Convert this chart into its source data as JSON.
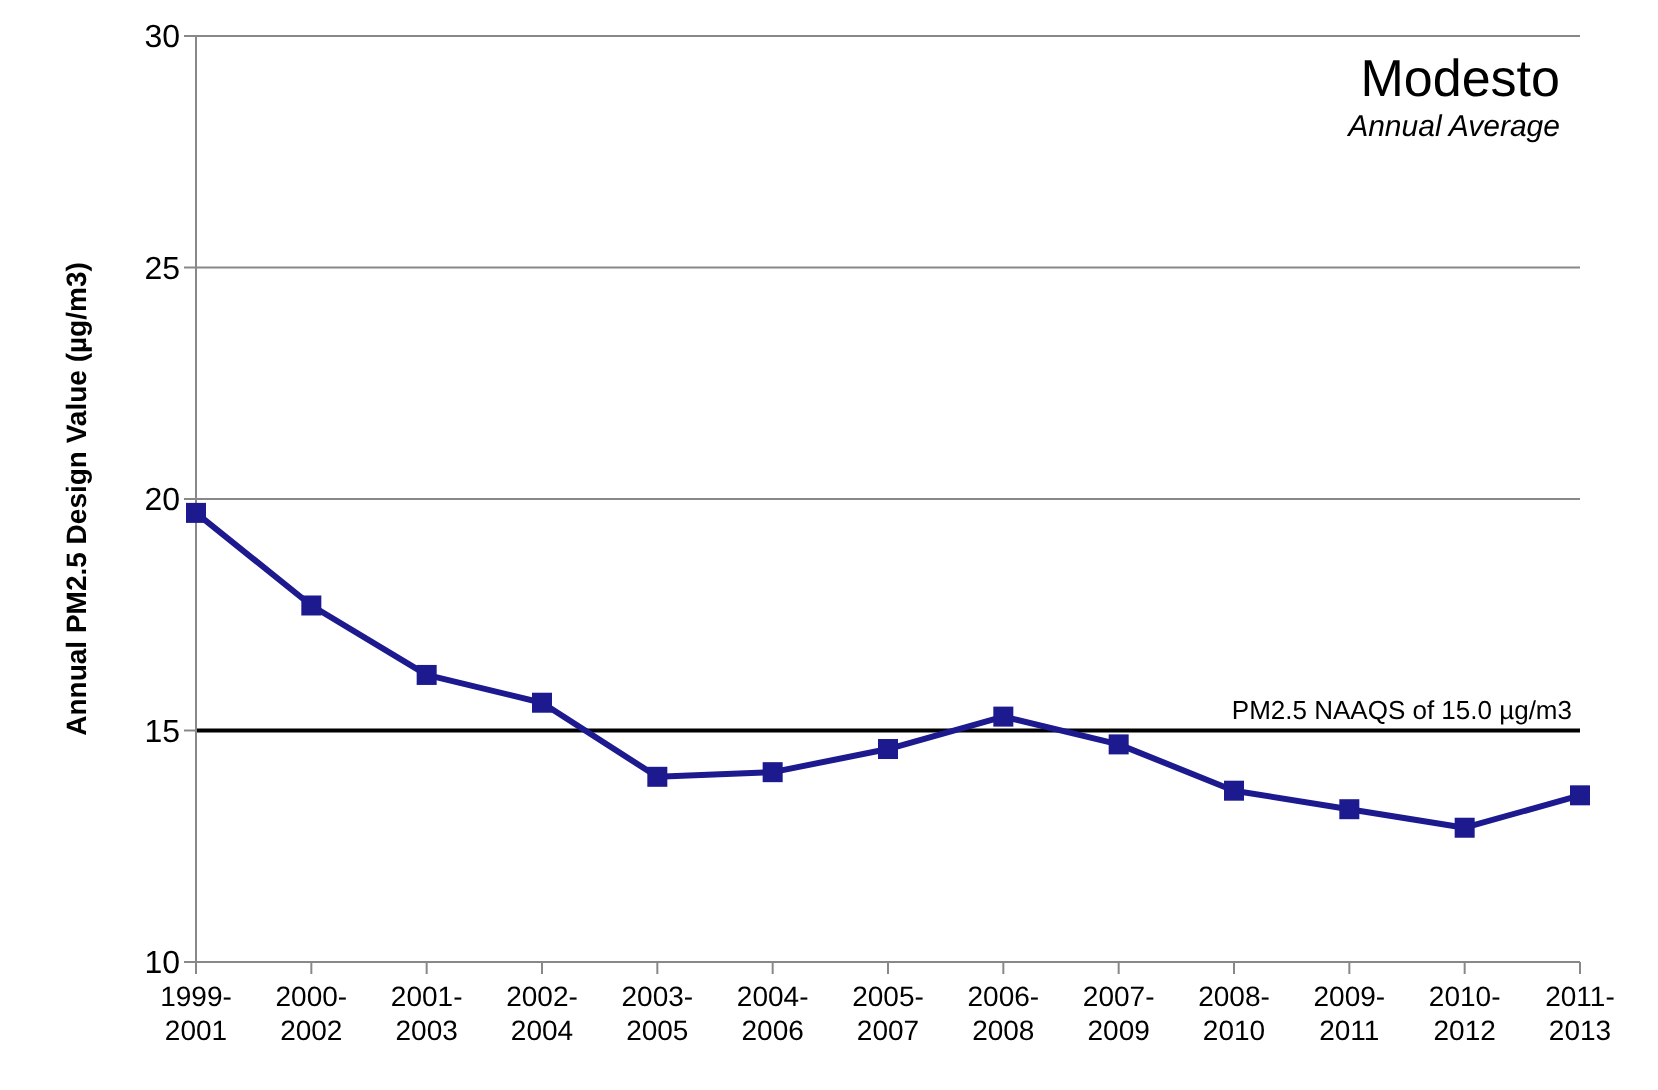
{
  "chart_data": {
    "type": "line",
    "title": "Modesto",
    "subtitle": "Annual Average",
    "ylabel": "Annual PM2.5 Design Value (µg/m3)",
    "categories": [
      "1999-2001",
      "2000-2002",
      "2001-2003",
      "2002-2004",
      "2003-2005",
      "2004-2006",
      "2005-2007",
      "2006-2008",
      "2007-2009",
      "2008-2010",
      "2009-2011",
      "2010-2012",
      "2011-2013"
    ],
    "series": [
      {
        "color": "#1c1a8e",
        "values": [
          19.7,
          17.7,
          16.2,
          15.6,
          14.0,
          14.1,
          14.6,
          15.3,
          14.7,
          13.7,
          13.3,
          12.9,
          13.6
        ]
      }
    ],
    "ylim": [
      10,
      30
    ],
    "yticks": [
      10,
      15,
      20,
      25,
      30
    ],
    "grid": "y",
    "legend": false,
    "marker": "square",
    "line_style": "solid",
    "ref_lines": [
      {
        "axis": "y",
        "value": 15,
        "label": "PM2.5 NAAQS of 15.0 µg/m3",
        "color": "#000000"
      }
    ]
  }
}
